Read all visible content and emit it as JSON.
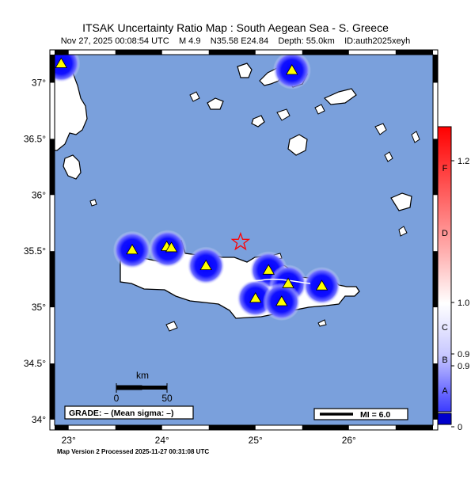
{
  "title": "ITSAK Uncertainty Ratio Map : South Aegean Sea - S. Greece",
  "subtitle": {
    "time": "Nov 27, 2025 00:08:54 UTC",
    "magnitude": "M 4.9",
    "location": "N35.58 E24.84",
    "depth": "Depth: 55.0km",
    "event_id": "ID:auth2025xeyh"
  },
  "lat_ticks": [
    "37°",
    "36.5°",
    "36°",
    "35.5°",
    "35°",
    "34.5°",
    "34°"
  ],
  "lon_ticks": [
    "23°",
    "24°",
    "25°",
    "26°"
  ],
  "scale_bar": {
    "unit": "km",
    "start": "0",
    "end": "50"
  },
  "grade_box": "GRADE: – (Mean sigma: –)",
  "mi_legend": "MI = 6.0",
  "colorbar": {
    "grades": [
      "F",
      "D",
      "C",
      "B",
      "A"
    ],
    "values": [
      "1.2",
      "1.0",
      "0.9",
      "0.9",
      "0"
    ]
  },
  "footer": "Map Version 2 Processed 2025-11-27 00:31:08 UTC",
  "epicenter": {
    "lat": 35.58,
    "lon": 24.84
  },
  "colors": {
    "sea": "#7aa0dc",
    "land": "#ffffff",
    "uncertainty_low": "#0000ff",
    "station": "#ffff00",
    "epicenter": "#ff0000"
  },
  "map_extent": {
    "lon": [
      22.85,
      26.9
    ],
    "lat": [
      33.95,
      37.25
    ]
  },
  "stations": [
    {
      "lat": 37.17,
      "lon": 22.92
    },
    {
      "lat": 37.11,
      "lon": 25.39
    },
    {
      "lat": 35.51,
      "lon": 23.68
    },
    {
      "lat": 35.54,
      "lon": 24.05
    },
    {
      "lat": 35.53,
      "lon": 24.1
    },
    {
      "lat": 35.37,
      "lon": 24.47
    },
    {
      "lat": 35.33,
      "lon": 25.14
    },
    {
      "lat": 35.21,
      "lon": 25.35
    },
    {
      "lat": 35.19,
      "lon": 25.71
    },
    {
      "lat": 35.08,
      "lon": 25.0
    },
    {
      "lat": 35.05,
      "lon": 25.28
    }
  ],
  "uncertainty_zones": [
    {
      "lat": 37.17,
      "lon": 22.92
    },
    {
      "lat": 37.11,
      "lon": 25.39
    },
    {
      "lat": 35.51,
      "lon": 23.68
    },
    {
      "lat": 35.52,
      "lon": 24.06
    },
    {
      "lat": 35.37,
      "lon": 24.47
    },
    {
      "lat": 35.33,
      "lon": 25.14
    },
    {
      "lat": 35.21,
      "lon": 25.35
    },
    {
      "lat": 35.19,
      "lon": 25.71
    },
    {
      "lat": 35.08,
      "lon": 25.0
    },
    {
      "lat": 35.05,
      "lon": 25.28
    }
  ]
}
